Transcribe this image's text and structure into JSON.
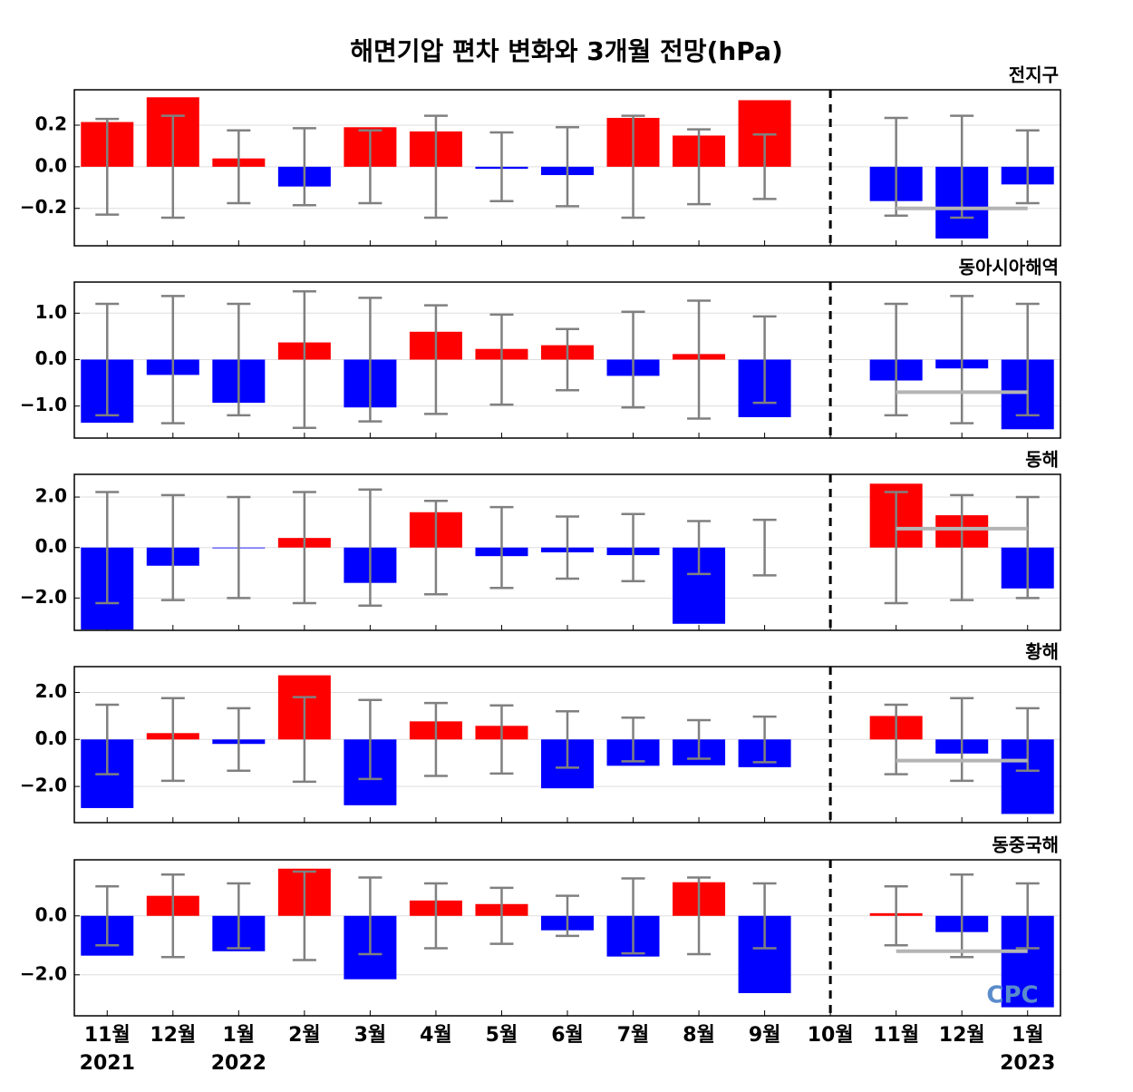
{
  "title": "해면기압 편차 변화와 3개월 전망(hPa)",
  "categories": [
    "11월",
    "12월",
    "1월",
    "2월",
    "3월",
    "4월",
    "5월",
    "6월",
    "7월",
    "8월",
    "9월",
    "10월",
    "11월",
    "12월",
    "1월"
  ],
  "years": [
    "2021",
    null,
    "2022",
    null,
    null,
    null,
    null,
    null,
    null,
    null,
    null,
    null,
    null,
    null,
    "2023"
  ],
  "logo": "CPC",
  "chart_data": [
    {
      "type": "bar",
      "subtitle": "전지구",
      "positive_color": "#ff0000",
      "negative_color": "#0000ff",
      "error_color": "#808080",
      "outlook_color": "#b4b4b4",
      "values": [
        0.215,
        0.334,
        0.04,
        -0.095,
        0.19,
        0.17,
        -0.01,
        -0.04,
        0.235,
        0.15,
        0.32,
        0,
        -0.165,
        -0.345,
        -0.085
      ],
      "errors": [
        0.23,
        0.245,
        0.175,
        0.185,
        0.175,
        0.245,
        0.165,
        0.19,
        0.245,
        0.18,
        0.155,
        null,
        0.235,
        0.245,
        0.175
      ],
      "outlook": -0.2,
      "ylim": [
        -0.38,
        0.37
      ],
      "yticks": [
        {
          "value": -0.2,
          "label": "−0.2"
        },
        {
          "value": 0,
          "label": "0.0"
        },
        {
          "value": 0.2,
          "label": "0.2"
        }
      ],
      "grid": true
    },
    {
      "type": "bar",
      "subtitle": "동아시아해역",
      "positive_color": "#ff0000",
      "negative_color": "#0000ff",
      "error_color": "#808080",
      "outlook_color": "#b4b4b4",
      "values": [
        -1.36,
        -0.33,
        -0.93,
        0.37,
        -1.03,
        0.6,
        0.23,
        0.31,
        -0.35,
        0.12,
        -1.24,
        0,
        -0.45,
        -0.19,
        -1.5
      ],
      "errors": [
        1.2,
        1.37,
        1.2,
        1.47,
        1.33,
        1.17,
        0.97,
        0.66,
        1.03,
        1.27,
        0.93,
        null,
        1.2,
        1.37,
        1.2
      ],
      "outlook": -0.7,
      "ylim": [
        -1.69,
        1.67
      ],
      "yticks": [
        {
          "value": -1,
          "label": "−1.0"
        },
        {
          "value": 0,
          "label": "0.0"
        },
        {
          "value": 1,
          "label": "1.0"
        }
      ],
      "grid": true
    },
    {
      "type": "bar",
      "subtitle": "동해",
      "positive_color": "#ff0000",
      "negative_color": "#0000ff",
      "error_color": "#808080",
      "outlook_color": "#b4b4b4",
      "values": [
        -3.25,
        -0.72,
        -0.03,
        0.38,
        -1.4,
        1.4,
        -0.34,
        -0.19,
        -0.3,
        -3.02,
        0,
        0,
        2.53,
        1.28,
        -1.62
      ],
      "errors": [
        2.2,
        2.08,
        2.0,
        2.2,
        2.3,
        1.85,
        1.6,
        1.23,
        1.33,
        1.05,
        1.1,
        null,
        2.2,
        2.08,
        2.0
      ],
      "outlook": 0.75,
      "ylim": [
        -3.28,
        2.9
      ],
      "yticks": [
        {
          "value": -2,
          "label": "−2.0"
        },
        {
          "value": 0,
          "label": "0.0"
        },
        {
          "value": 2,
          "label": "2.0"
        }
      ],
      "grid": true
    },
    {
      "type": "bar",
      "subtitle": "황해",
      "positive_color": "#ff0000",
      "negative_color": "#0000ff",
      "error_color": "#808080",
      "outlook_color": "#b4b4b4",
      "values": [
        -2.92,
        0.27,
        -0.19,
        2.73,
        -2.8,
        0.77,
        0.58,
        -2.08,
        -1.12,
        -1.1,
        -1.18,
        0,
        1.0,
        -0.6,
        -3.17
      ],
      "errors": [
        1.48,
        1.76,
        1.33,
        1.8,
        1.68,
        1.55,
        1.45,
        1.2,
        0.93,
        0.82,
        0.97,
        null,
        1.48,
        1.76,
        1.33
      ],
      "outlook": -0.9,
      "ylim": [
        -3.54,
        3.1
      ],
      "yticks": [
        {
          "value": -2,
          "label": "−2.0"
        },
        {
          "value": 0,
          "label": "0.0"
        },
        {
          "value": 2,
          "label": "2.0"
        }
      ],
      "grid": true
    },
    {
      "type": "bar",
      "subtitle": "동중국해",
      "positive_color": "#ff0000",
      "negative_color": "#0000ff",
      "error_color": "#808080",
      "outlook_color": "#b4b4b4",
      "values": [
        -1.35,
        0.68,
        -1.2,
        1.6,
        -2.15,
        0.52,
        0.4,
        -0.49,
        -1.38,
        1.14,
        -2.62,
        0,
        0.09,
        -0.55,
        -3.1
      ],
      "errors": [
        1.0,
        1.4,
        1.1,
        1.5,
        1.3,
        1.1,
        0.95,
        0.68,
        1.27,
        1.3,
        1.1,
        null,
        1.0,
        1.4,
        1.1
      ],
      "outlook": -1.2,
      "ylim": [
        -3.39,
        1.9
      ],
      "yticks": [
        {
          "value": -2,
          "label": "−2.0"
        },
        {
          "value": 0,
          "label": "0.0"
        }
      ],
      "grid": true
    }
  ]
}
